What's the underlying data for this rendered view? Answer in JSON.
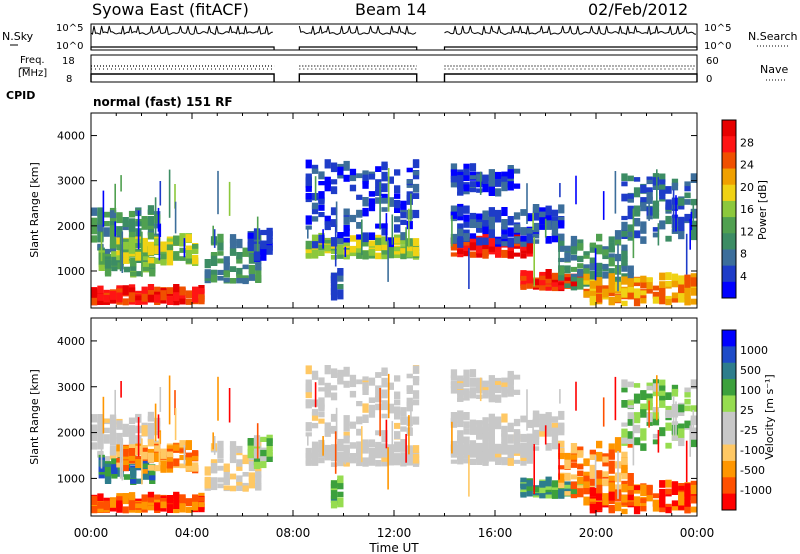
{
  "header": {
    "title": "Syowa East (fitACF)",
    "beam": "Beam 14",
    "date": "02/Feb/2012"
  },
  "top_panel": {
    "left_label": "N.Sky",
    "right_label": "N.Search",
    "left_ticks": [
      "10^5",
      "10^0"
    ],
    "right_ticks": [
      "10^5",
      "10^0"
    ]
  },
  "freq_panel": {
    "left_label_1": "Freq.",
    "left_label_2": "[MHz]",
    "right_label": "Nave",
    "left_ticks": [
      "18",
      "8"
    ],
    "right_ticks": [
      "60",
      "0"
    ]
  },
  "cpid": {
    "label": "CPID",
    "value": "normal (fast) 151 RF"
  },
  "colors": {
    "power_scale": [
      "#0000ff",
      "#1e3cc8",
      "#3c6e9b",
      "#3c8c64",
      "#50a050",
      "#8cc83c",
      "#f0d214",
      "#f0a000",
      "#f05000",
      "#ff1414",
      "#e60000"
    ],
    "velocity_scale": [
      "#ff0000",
      "#ff5000",
      "#ff9600",
      "#ffc864",
      "#c8c8c8",
      "#c8c8c8",
      "#96dc50",
      "#3ca03c",
      "#2d7d8c",
      "#1e4bc8",
      "#0000ff"
    ],
    "ground_scatter": "#c8c8c8"
  },
  "chart_data": [
    {
      "type": "heatmap",
      "title": "Power",
      "xlabel": "Time UT",
      "ylabel": "Slant Range [km]",
      "x_ticks": [
        "00:00",
        "04:00",
        "08:00",
        "12:00",
        "16:00",
        "20:00",
        "00:00"
      ],
      "y_ticks": [
        "1000",
        "2000",
        "3000",
        "4000"
      ],
      "ylim": [
        180,
        4500
      ],
      "colorbar_label": "Power [dB]",
      "colorbar_ticks": [
        "4",
        "8",
        "12",
        "16",
        "20",
        "24",
        "28"
      ],
      "colorbar_range": [
        0,
        30
      ],
      "data_gaps_ut_hours": [
        [
          7.25,
          8.25
        ],
        [
          12.9,
          14.0
        ]
      ]
    },
    {
      "type": "heatmap",
      "title": "Velocity",
      "xlabel": "Time UT",
      "ylabel": "Slant Range [km]",
      "x_ticks": [
        "00:00",
        "04:00",
        "08:00",
        "12:00",
        "16:00",
        "20:00",
        "00:00"
      ],
      "y_ticks": [
        "1000",
        "2000",
        "3000",
        "4000"
      ],
      "ylim": [
        180,
        4500
      ],
      "colorbar_label": "Velocity [m s⁻¹]",
      "colorbar_ticks": [
        "1000",
        "500",
        "100",
        "25",
        "-25",
        "-100",
        "-500",
        "-1000"
      ],
      "data_gaps_ut_hours": [
        [
          7.25,
          8.25
        ],
        [
          12.9,
          14.0
        ]
      ]
    }
  ]
}
